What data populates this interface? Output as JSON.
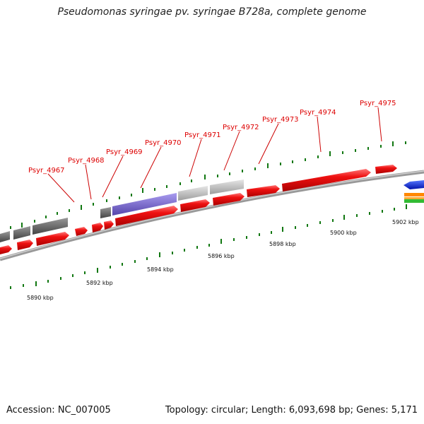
{
  "title": "Pseudomonas syringae pv. syringae B728a, complete genome",
  "footer": {
    "accession": "Accession: NC_007005",
    "summary": "Topology: circular; Length: 6,093,698 bp; Genes: 5,171"
  },
  "gene_labels": [
    "Psyr_4967",
    "Psyr_4968",
    "Psyr_4969",
    "Psyr_4970",
    "Psyr_4971",
    "Psyr_4972",
    "Psyr_4973",
    "Psyr_4974",
    "Psyr_4975"
  ],
  "scale_labels": [
    "5890 kbp",
    "5892 kbp",
    "5894 kbp",
    "5896 kbp",
    "5898 kbp",
    "5900 kbp",
    "5902 kbp"
  ],
  "colors": {
    "cds": "#ee0000",
    "gene_dark": "#666666",
    "gene_light": "#c0c0c0",
    "gene_purple": "#7766cc",
    "backbone": "#888888",
    "tick": "#117711",
    "label": "#dd0000",
    "legend_blue": "#1133ee",
    "legend_orange": "#ff8800",
    "legend_green": "#33bb33"
  }
}
